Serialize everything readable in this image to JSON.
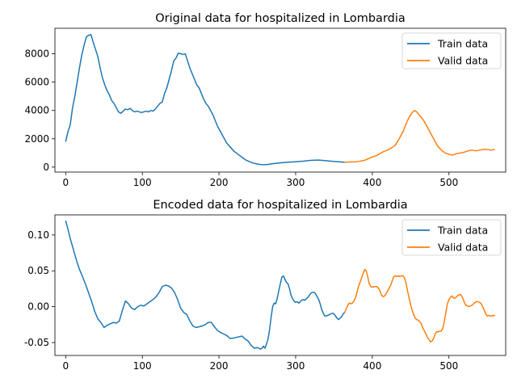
{
  "colors": {
    "train": "#1f77b4",
    "valid": "#ff7f0e"
  },
  "chart_data": [
    {
      "type": "line",
      "title": "Original data for hospitalized in Lombardia",
      "xlabel": "",
      "ylabel": "",
      "xlim": [
        -14,
        574
      ],
      "ylim": [
        -350,
        9800
      ],
      "xticks": [
        0,
        100,
        200,
        300,
        400,
        500
      ],
      "yticks": [
        0,
        2000,
        4000,
        6000,
        8000
      ],
      "grid": false,
      "legend": "top-right",
      "series": [
        {
          "name": "Train data",
          "color_key": "train",
          "x": [
            0,
            3,
            6,
            9,
            12,
            15,
            18,
            21,
            24,
            27,
            30,
            33,
            36,
            39,
            42,
            45,
            48,
            51,
            54,
            57,
            60,
            63,
            66,
            69,
            72,
            75,
            78,
            81,
            84,
            87,
            90,
            93,
            96,
            99,
            102,
            105,
            108,
            111,
            114,
            117,
            120,
            123,
            126,
            129,
            132,
            135,
            138,
            141,
            144,
            147,
            150,
            153,
            156,
            159,
            162,
            165,
            168,
            171,
            174,
            177,
            180,
            183,
            186,
            189,
            192,
            195,
            198,
            201,
            204,
            207,
            210,
            215,
            220,
            225,
            230,
            235,
            240,
            245,
            250,
            255,
            260,
            265,
            270,
            275,
            280,
            290,
            300,
            310,
            320,
            330,
            340,
            350,
            358,
            364
          ],
          "y": [
            1800,
            2500,
            3000,
            4200,
            5000,
            6000,
            7000,
            7900,
            8600,
            9200,
            9300,
            9350,
            8800,
            8300,
            7800,
            7000,
            6300,
            5800,
            5400,
            5100,
            4700,
            4500,
            4200,
            3900,
            3800,
            3950,
            4100,
            4050,
            4150,
            4000,
            3900,
            3950,
            3900,
            3850,
            3900,
            3950,
            3900,
            4000,
            3950,
            4100,
            4300,
            4500,
            4600,
            5200,
            5600,
            6200,
            6800,
            7500,
            7700,
            8050,
            8000,
            7950,
            8000,
            7500,
            7000,
            6600,
            6200,
            5800,
            5600,
            5200,
            4800,
            4500,
            4300,
            4000,
            3700,
            3300,
            2900,
            2600,
            2300,
            2000,
            1700,
            1400,
            1100,
            900,
            700,
            500,
            380,
            280,
            220,
            180,
            170,
            200,
            240,
            270,
            300,
            350,
            380,
            420,
            480,
            500,
            450,
            400,
            370,
            340
          ]
        },
        {
          "name": "Valid data",
          "color_key": "valid",
          "x": [
            364,
            370,
            380,
            390,
            400,
            405,
            410,
            415,
            420,
            425,
            430,
            435,
            440,
            443,
            446,
            449,
            452,
            455,
            458,
            461,
            464,
            467,
            470,
            475,
            480,
            485,
            490,
            495,
            500,
            505,
            510,
            515,
            520,
            525,
            530,
            535,
            540,
            545,
            550,
            555,
            560
          ],
          "y": [
            340,
            360,
            380,
            480,
            720,
            800,
            960,
            1100,
            1200,
            1350,
            1550,
            2000,
            2500,
            2900,
            3300,
            3600,
            3850,
            4000,
            3900,
            3700,
            3500,
            3300,
            3000,
            2500,
            2000,
            1500,
            1200,
            1000,
            900,
            850,
            950,
            1000,
            1050,
            1150,
            1200,
            1150,
            1200,
            1250,
            1250,
            1200,
            1250
          ]
        }
      ]
    },
    {
      "type": "line",
      "title": "Encoded data for hospitalized in Lombardia",
      "xlabel": "",
      "ylabel": "",
      "xlim": [
        -14,
        574
      ],
      "ylim": [
        -0.068,
        0.128
      ],
      "xticks": [
        0,
        100,
        200,
        300,
        400,
        500
      ],
      "yticks": [
        -0.05,
        0.0,
        0.05,
        0.1
      ],
      "grid": false,
      "legend": "top-right",
      "series": [
        {
          "name": "Train data",
          "color_key": "train",
          "x": [
            0,
            3,
            6,
            10,
            14,
            18,
            22,
            26,
            30,
            34,
            38,
            42,
            46,
            50,
            54,
            58,
            62,
            66,
            70,
            74,
            78,
            82,
            86,
            90,
            94,
            98,
            102,
            106,
            110,
            114,
            118,
            122,
            126,
            130,
            134,
            138,
            142,
            146,
            150,
            154,
            158,
            162,
            166,
            170,
            174,
            178,
            182,
            186,
            190,
            194,
            198,
            202,
            206,
            210,
            214,
            218,
            222,
            226,
            230,
            234,
            238,
            242,
            246,
            250,
            252,
            254,
            256,
            258,
            260,
            262,
            264,
            266,
            268,
            270,
            272,
            274,
            276,
            278,
            280,
            282,
            284,
            286,
            288,
            290,
            292,
            294,
            296,
            298,
            300,
            302,
            304,
            306,
            308,
            310,
            312,
            314,
            316,
            318,
            320,
            322,
            324,
            326,
            328,
            330,
            332,
            334,
            336,
            338,
            340,
            342,
            344,
            346,
            348,
            350,
            352,
            354,
            356,
            358,
            360,
            362,
            364
          ],
          "y": [
            0.12,
            0.108,
            0.095,
            0.08,
            0.065,
            0.052,
            0.042,
            0.031,
            0.019,
            0.007,
            -0.007,
            -0.017,
            -0.022,
            -0.029,
            -0.026,
            -0.024,
            -0.022,
            -0.023,
            -0.02,
            -0.005,
            0.008,
            0.004,
            -0.002,
            -0.004,
            0.0,
            0.002,
            0.001,
            0.004,
            0.007,
            0.01,
            0.014,
            0.02,
            0.028,
            0.03,
            0.029,
            0.026,
            0.02,
            0.01,
            -0.002,
            -0.008,
            -0.011,
            -0.02,
            -0.027,
            -0.029,
            -0.028,
            -0.027,
            -0.025,
            -0.022,
            -0.022,
            -0.028,
            -0.033,
            -0.036,
            -0.038,
            -0.04,
            -0.044,
            -0.044,
            -0.043,
            -0.042,
            -0.041,
            -0.045,
            -0.048,
            -0.054,
            -0.058,
            -0.057,
            -0.058,
            -0.059,
            -0.058,
            -0.055,
            -0.058,
            -0.052,
            -0.045,
            -0.032,
            -0.015,
            0.0,
            0.005,
            0.004,
            0.012,
            0.022,
            0.032,
            0.041,
            0.043,
            0.038,
            0.034,
            0.032,
            0.025,
            0.016,
            0.011,
            0.008,
            0.006,
            0.007,
            0.005,
            0.007,
            0.009,
            0.01,
            0.009,
            0.011,
            0.013,
            0.016,
            0.019,
            0.02,
            0.02,
            0.018,
            0.014,
            0.01,
            0.004,
            -0.004,
            -0.009,
            -0.013,
            -0.013,
            -0.012,
            -0.011,
            -0.01,
            -0.009,
            -0.01,
            -0.013,
            -0.016,
            -0.018,
            -0.016,
            -0.014,
            -0.01,
            -0.008
          ]
        },
        {
          "name": "Valid data",
          "color_key": "valid",
          "x": [
            364,
            366,
            368,
            370,
            372,
            374,
            376,
            378,
            380,
            382,
            384,
            386,
            388,
            390,
            392,
            394,
            396,
            398,
            400,
            402,
            404,
            406,
            408,
            410,
            412,
            414,
            416,
            418,
            420,
            422,
            424,
            426,
            428,
            430,
            432,
            434,
            436,
            438,
            440,
            442,
            444,
            446,
            448,
            450,
            452,
            454,
            456,
            458,
            460,
            462,
            464,
            466,
            468,
            470,
            472,
            474,
            476,
            478,
            480,
            482,
            484,
            486,
            488,
            490,
            492,
            494,
            496,
            498,
            500,
            502,
            504,
            506,
            508,
            510,
            512,
            514,
            516,
            518,
            520,
            522,
            524,
            526,
            528,
            530,
            532,
            534,
            536,
            538,
            540,
            542,
            544,
            546,
            548,
            550,
            552,
            554,
            556,
            558,
            560
          ],
          "y": [
            -0.008,
            -0.003,
            0.002,
            0.005,
            0.004,
            0.005,
            0.008,
            0.012,
            0.02,
            0.028,
            0.034,
            0.04,
            0.046,
            0.052,
            0.05,
            0.042,
            0.032,
            0.028,
            0.027,
            0.028,
            0.028,
            0.028,
            0.026,
            0.022,
            0.016,
            0.014,
            0.015,
            0.018,
            0.022,
            0.026,
            0.03,
            0.036,
            0.042,
            0.043,
            0.042,
            0.043,
            0.042,
            0.043,
            0.043,
            0.04,
            0.033,
            0.022,
            0.012,
            0.003,
            -0.005,
            -0.011,
            -0.016,
            -0.018,
            -0.019,
            -0.021,
            -0.024,
            -0.03,
            -0.034,
            -0.038,
            -0.043,
            -0.046,
            -0.049,
            -0.048,
            -0.044,
            -0.038,
            -0.035,
            -0.035,
            -0.034,
            -0.034,
            -0.03,
            -0.02,
            -0.008,
            0.004,
            0.01,
            0.013,
            0.015,
            0.012,
            0.012,
            0.014,
            0.016,
            0.017,
            0.016,
            0.012,
            0.006,
            0.002,
            0.001,
            0.0,
            0.001,
            0.002,
            0.004,
            0.006,
            0.007,
            0.007,
            0.006,
            0.004,
            0.0,
            -0.005,
            -0.01,
            -0.013,
            -0.012,
            -0.013,
            -0.013,
            -0.012,
            -0.013
          ]
        }
      ]
    }
  ]
}
